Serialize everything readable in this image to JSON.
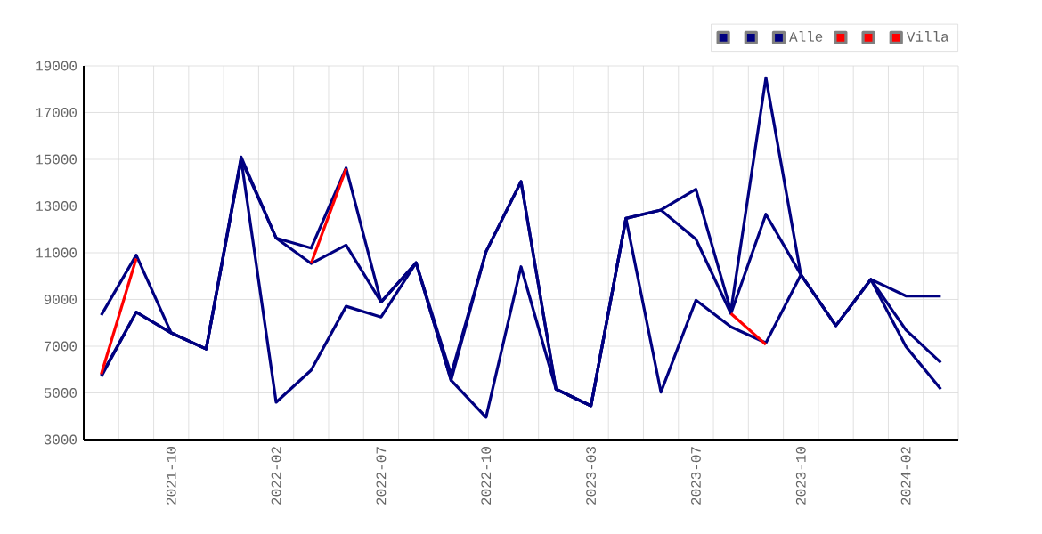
{
  "chart_data": {
    "type": "line",
    "categories": [
      null,
      null,
      "2021-10",
      null,
      null,
      "2022-02",
      null,
      null,
      "2022-07",
      null,
      null,
      "2022-10",
      null,
      null,
      "2023-03",
      null,
      null,
      "2023-07",
      null,
      null,
      "2023-10",
      null,
      null,
      "2024-02",
      null
    ],
    "series": [
      {
        "color": "#000080",
        "values": [
          8330,
          10900,
          7570,
          6880,
          15100,
          11630,
          11200,
          14630,
          8890,
          10570,
          5790,
          11050,
          14050,
          5160,
          4450,
          12470,
          12830,
          13720,
          8510,
          18490,
          10060,
          7880,
          9860,
          9150,
          9150
        ]
      },
      {
        "color": "#000080",
        "values": [
          5750,
          8460,
          7570,
          6880,
          15000,
          11630,
          10540,
          11330,
          8890,
          10570,
          5540,
          11050,
          14050,
          5160,
          4450,
          12470,
          12830,
          11580,
          8400,
          12650,
          10060,
          7880,
          9860,
          7700,
          6300
        ]
      },
      {
        "name": "Alle",
        "color": "#000080",
        "values": [
          5700,
          8460,
          7570,
          6880,
          15000,
          4600,
          5970,
          8710,
          8250,
          10570,
          5540,
          3960,
          10400,
          5160,
          4450,
          12470,
          5030,
          8970,
          7830,
          7140,
          10060,
          7880,
          9860,
          6990,
          5160
        ]
      },
      {
        "color": "#ff0000",
        "values": [
          5800,
          10750,
          null,
          null,
          null,
          null,
          null,
          null,
          null,
          null,
          null,
          null,
          null,
          null,
          null,
          null,
          null,
          null,
          null,
          null,
          null,
          null,
          null,
          null,
          null
        ]
      },
      {
        "color": "#ff0000",
        "values": [
          null,
          null,
          null,
          null,
          null,
          null,
          10540,
          14600,
          null,
          null,
          null,
          null,
          null,
          null,
          null,
          null,
          null,
          null,
          null,
          null,
          null,
          null,
          null,
          null,
          null
        ]
      },
      {
        "name": "Villa",
        "color": "#ff0000",
        "values": [
          null,
          null,
          null,
          null,
          null,
          null,
          null,
          null,
          null,
          null,
          null,
          null,
          null,
          null,
          null,
          null,
          null,
          null,
          8400,
          7070,
          null,
          null,
          null,
          null,
          null
        ]
      }
    ],
    "ylim": [
      3000,
      19000
    ],
    "yticks": [
      3000,
      5000,
      7000,
      9000,
      11000,
      13000,
      15000,
      17000,
      19000
    ],
    "grid": true,
    "legend": "top right"
  }
}
